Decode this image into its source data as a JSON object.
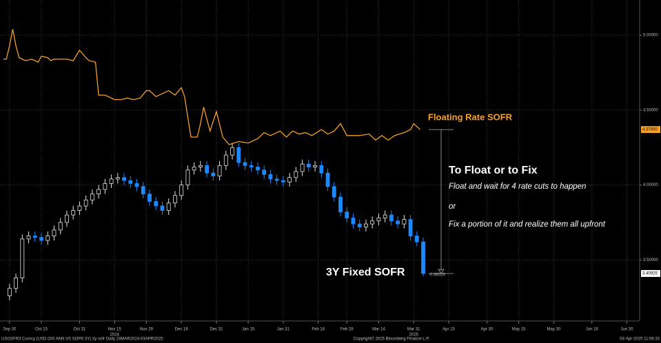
{
  "chart_data": {
    "type": "candlestick",
    "series": [
      {
        "name": "3Y Fixed SOFR",
        "type": "candlestick",
        "up_color": "#e6e6e6",
        "down_color": "#1e88ff",
        "last_label": "3.40925",
        "x": [
          0,
          2,
          4,
          6,
          8,
          10,
          12,
          14,
          16,
          18,
          20,
          22,
          24,
          26,
          28,
          30,
          32,
          34,
          36,
          38,
          40,
          42,
          44,
          46,
          48,
          50,
          52,
          54,
          56,
          58,
          60,
          62,
          64,
          66,
          68,
          70,
          72,
          74,
          76,
          78,
          80,
          82,
          84,
          86,
          88,
          90,
          92,
          94,
          96,
          98,
          100,
          102,
          104,
          106,
          108,
          110,
          112,
          114,
          116,
          118,
          120,
          122,
          124,
          126,
          128,
          130
        ],
        "open": [
          3.26,
          3.31,
          3.38,
          3.64,
          3.66,
          3.65,
          3.63,
          3.66,
          3.7,
          3.75,
          3.8,
          3.83,
          3.86,
          3.9,
          3.94,
          3.97,
          4.01,
          4.04,
          4.05,
          4.03,
          4.01,
          3.99,
          3.94,
          3.89,
          3.86,
          3.83,
          3.88,
          3.93,
          4.0,
          4.1,
          4.12,
          4.13,
          4.08,
          4.06,
          4.13,
          4.2,
          4.25,
          4.15,
          4.13,
          4.12,
          4.1,
          4.07,
          4.04,
          4.03,
          4.02,
          4.05,
          4.09,
          4.14,
          4.12,
          4.13,
          4.08,
          3.99,
          3.92,
          3.82,
          3.78,
          3.74,
          3.72,
          3.74,
          3.76,
          3.78,
          3.8,
          3.76,
          3.74,
          3.77,
          3.66,
          3.62
        ],
        "high": [
          3.34,
          3.41,
          3.67,
          3.69,
          3.69,
          3.68,
          3.69,
          3.73,
          3.78,
          3.83,
          3.86,
          3.89,
          3.93,
          3.97,
          4.0,
          4.04,
          4.07,
          4.08,
          4.08,
          4.06,
          4.04,
          4.02,
          3.97,
          3.92,
          3.89,
          3.91,
          3.96,
          4.03,
          4.13,
          4.15,
          4.16,
          4.16,
          4.11,
          4.16,
          4.23,
          4.28,
          4.28,
          4.18,
          4.16,
          4.15,
          4.13,
          4.1,
          4.07,
          4.06,
          4.08,
          4.12,
          4.17,
          4.17,
          4.16,
          4.16,
          4.11,
          4.02,
          3.95,
          3.85,
          3.81,
          3.77,
          3.77,
          3.79,
          3.81,
          3.83,
          3.83,
          3.79,
          3.8,
          3.8,
          3.69,
          3.65
        ],
        "low": [
          3.23,
          3.28,
          3.35,
          3.61,
          3.62,
          3.6,
          3.6,
          3.63,
          3.67,
          3.72,
          3.77,
          3.8,
          3.83,
          3.87,
          3.91,
          3.94,
          3.98,
          4.01,
          4.0,
          3.98,
          3.96,
          3.91,
          3.86,
          3.83,
          3.8,
          3.8,
          3.85,
          3.9,
          3.97,
          4.07,
          4.09,
          4.05,
          4.03,
          4.03,
          4.1,
          4.17,
          4.12,
          4.1,
          4.09,
          4.07,
          4.04,
          4.01,
          4.0,
          3.99,
          3.99,
          4.02,
          4.06,
          4.09,
          4.09,
          4.05,
          3.96,
          3.89,
          3.79,
          3.75,
          3.71,
          3.69,
          3.69,
          3.71,
          3.73,
          3.75,
          3.73,
          3.71,
          3.71,
          3.63,
          3.59,
          3.39
        ],
        "close": [
          3.31,
          3.38,
          3.64,
          3.66,
          3.65,
          3.63,
          3.66,
          3.7,
          3.75,
          3.8,
          3.83,
          3.86,
          3.9,
          3.94,
          3.97,
          4.01,
          4.04,
          4.05,
          4.03,
          4.01,
          3.99,
          3.94,
          3.89,
          3.86,
          3.83,
          3.88,
          3.93,
          4.0,
          4.1,
          4.12,
          4.13,
          4.08,
          4.06,
          4.13,
          4.2,
          4.25,
          4.15,
          4.13,
          4.12,
          4.1,
          4.07,
          4.04,
          4.03,
          4.02,
          4.05,
          4.09,
          4.14,
          4.12,
          4.13,
          4.08,
          3.99,
          3.92,
          3.82,
          3.78,
          3.74,
          3.72,
          3.74,
          3.76,
          3.78,
          3.8,
          3.76,
          3.74,
          3.77,
          3.66,
          3.62,
          3.40925
        ]
      },
      {
        "name": "Floating Rate SOFR",
        "type": "line",
        "color": "#f5a02a",
        "last_label": "4.37000",
        "x": [
          -2,
          -1,
          0,
          1,
          2,
          3,
          5,
          7,
          9,
          10,
          12,
          13,
          14,
          18,
          20,
          22,
          24,
          25,
          27,
          28,
          30,
          33,
          35,
          37,
          39,
          41,
          43,
          44,
          46,
          48,
          50,
          52,
          54,
          55,
          57,
          59,
          60,
          61,
          63,
          65,
          67,
          69,
          72,
          75,
          78,
          80,
          82,
          85,
          87,
          89,
          91,
          93,
          95,
          98,
          100,
          102,
          104,
          106,
          110,
          113,
          115,
          117,
          119,
          121,
          124,
          126,
          127,
          129
        ],
        "values": [
          4.84,
          4.84,
          4.93,
          5.04,
          4.93,
          4.85,
          4.83,
          4.84,
          4.82,
          4.86,
          4.85,
          4.83,
          4.84,
          4.84,
          4.83,
          4.9,
          4.85,
          4.83,
          4.82,
          4.6,
          4.6,
          4.57,
          4.57,
          4.58,
          4.57,
          4.58,
          4.63,
          4.63,
          4.59,
          4.61,
          4.63,
          4.6,
          4.65,
          4.59,
          4.32,
          4.32,
          4.41,
          4.52,
          4.36,
          4.49,
          4.32,
          4.27,
          4.29,
          4.28,
          4.31,
          4.35,
          4.33,
          4.36,
          4.32,
          4.36,
          4.34,
          4.35,
          4.33,
          4.37,
          4.34,
          4.36,
          4.41,
          4.33,
          4.33,
          4.34,
          4.3,
          4.33,
          4.3,
          4.33,
          4.35,
          4.37,
          4.41,
          4.37
        ]
      }
    ],
    "xlim": [
      -3,
      198
    ],
    "xticks": [
      {
        "value": 0,
        "label": "Sep 30"
      },
      {
        "value": 10,
        "label": "Oct 15"
      },
      {
        "value": 22,
        "label": "Oct 31"
      },
      {
        "value": 33,
        "label": "Nov 15"
      },
      {
        "value": 43,
        "label": "Nov 29"
      },
      {
        "value": 54,
        "label": "Dec 16"
      },
      {
        "value": 65,
        "label": "Dec 31"
      },
      {
        "value": 75,
        "label": "Jan 15"
      },
      {
        "value": 86,
        "label": "Jan 31"
      },
      {
        "value": 97,
        "label": "Feb 14"
      },
      {
        "value": 106,
        "label": "Feb 28"
      },
      {
        "value": 116,
        "label": "Mar 14"
      },
      {
        "value": 127,
        "label": "Mar 31"
      },
      {
        "value": 138,
        "label": "Apr 15"
      },
      {
        "value": 150,
        "label": "Apr 30"
      },
      {
        "value": 160,
        "label": "May 15"
      },
      {
        "value": 171,
        "label": "May 30"
      },
      {
        "value": 183,
        "label": "Jun 16"
      },
      {
        "value": 194,
        "label": "Jun 30"
      }
    ],
    "x_year_labels": [
      {
        "value": 33,
        "label": "2024"
      },
      {
        "value": 127,
        "label": "2025"
      }
    ],
    "ylim": [
      3.12,
      5.235
    ],
    "yticks": [
      {
        "value": 3.5,
        "label": "3.50000"
      },
      {
        "value": 4,
        "label": "4.00000"
      },
      {
        "value": 4.5,
        "label": "4.50000"
      },
      {
        "value": 5,
        "label": "5.00000"
      }
    ],
    "grid": true,
    "annotation": {
      "heading": "To Float or to Fix",
      "lines": [
        "Float and wait for 4 rate cuts to happen",
        "or",
        "Fix a portion of it and realize them all upfront"
      ],
      "spread": -0.96029
    }
  },
  "footer": {
    "left": "USOSFR3 Curncy (USD OIS  ANN VS SOFR 3Y) 3y sofr  Daily 24MAR2024-03APR2025",
    "center": "Copyright© 2025 Bloomberg Finance L.P.",
    "right": "03-Apr-2025 11:06:33"
  }
}
